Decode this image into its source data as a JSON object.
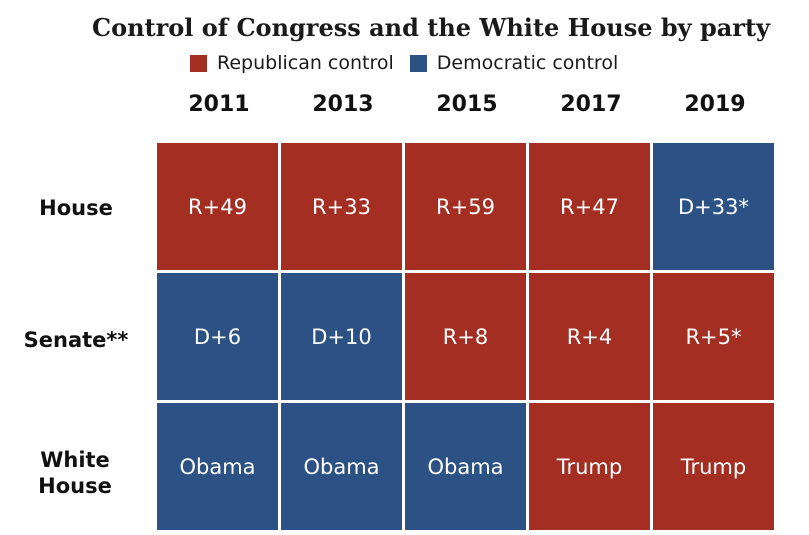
{
  "title": "Control of Congress and the White House by party",
  "legend": {
    "republican_label": "Republican control",
    "democratic_label": "Democratic control"
  },
  "colors": {
    "republican": "#a32e21",
    "democratic": "#2c5184"
  },
  "chart_data": {
    "type": "table",
    "title": "Control of Congress and the White House by party",
    "columns": [
      "2011",
      "2013",
      "2015",
      "2017",
      "2019"
    ],
    "rows": [
      {
        "label": "House",
        "cells": [
          {
            "text": "R+49",
            "party": "R"
          },
          {
            "text": "R+33",
            "party": "R"
          },
          {
            "text": "R+59",
            "party": "R"
          },
          {
            "text": "R+47",
            "party": "R"
          },
          {
            "text": "D+33*",
            "party": "D"
          }
        ]
      },
      {
        "label": "Senate**",
        "cells": [
          {
            "text": "D+6",
            "party": "D"
          },
          {
            "text": "D+10",
            "party": "D"
          },
          {
            "text": "R+8",
            "party": "R"
          },
          {
            "text": "R+4",
            "party": "R"
          },
          {
            "text": "R+5*",
            "party": "R"
          }
        ]
      },
      {
        "label": "White House",
        "cells": [
          {
            "text": "Obama",
            "party": "D"
          },
          {
            "text": "Obama",
            "party": "D"
          },
          {
            "text": "Obama",
            "party": "D"
          },
          {
            "text": "Trump",
            "party": "R"
          },
          {
            "text": "Trump",
            "party": "R"
          }
        ]
      }
    ]
  }
}
